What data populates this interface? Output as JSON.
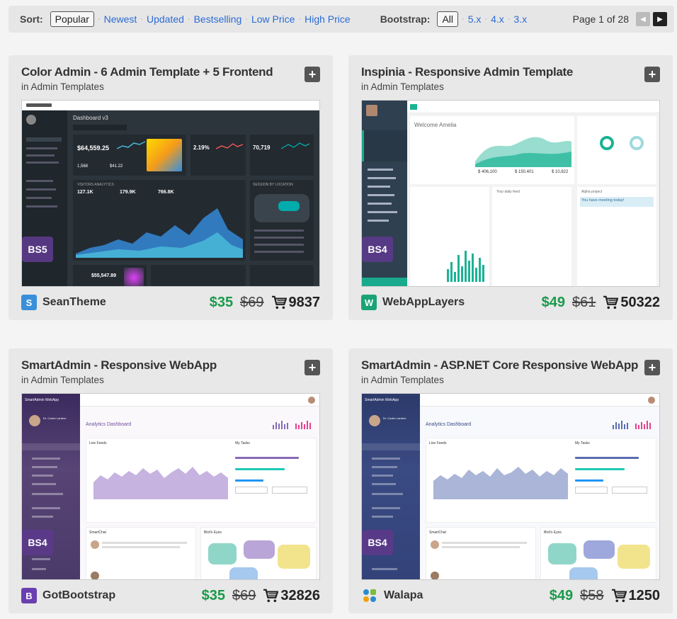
{
  "sortbar": {
    "sort_label": "Sort:",
    "sort_options": [
      "Popular",
      "Newest",
      "Updated",
      "Bestselling",
      "Low Price",
      "High Price"
    ],
    "bootstrap_label": "Bootstrap:",
    "bootstrap_options": [
      "All",
      "5.x",
      "4.x",
      "3.x"
    ],
    "page_text": "Page 1 of 28"
  },
  "cards": [
    {
      "title": "Color Admin - 6 Admin Template + 5 Frontend",
      "category": "in Admin Templates",
      "badge": "BS5",
      "author": "SeanTheme",
      "author_initial": "S",
      "author_color": "#3a8fd9",
      "price": "$35",
      "old_price": "$69",
      "sales": "9837"
    },
    {
      "title": "Inspinia - Responsive Admin Template",
      "category": "in Admin Templates",
      "badge": "BS4",
      "author": "WebAppLayers",
      "author_initial": "W",
      "author_color": "#1aa377",
      "price": "$49",
      "old_price": "$61",
      "sales": "50322"
    },
    {
      "title": "SmartAdmin - Responsive WebApp",
      "category": "in Admin Templates",
      "badge": "BS4",
      "author": "GotBootstrap",
      "author_initial": "B",
      "author_color": "#6a3fb0",
      "price": "$35",
      "old_price": "$69",
      "sales": "32826"
    },
    {
      "title": "SmartAdmin - ASP.NET Core Responsive WebApp",
      "category": "in Admin Templates",
      "badge": "BS4",
      "author": "Walapa",
      "author_initial": "",
      "author_color": "#2a8bd0",
      "price": "$49",
      "old_price": "$58",
      "sales": "1250"
    }
  ],
  "previews": {
    "color_admin": {
      "header_title": "Dashboard v3",
      "total_sales": "$64,559.25",
      "conversion_rate": "2.19%",
      "store_sessions": "70,719",
      "sub_a": "1,568",
      "sub_b": "$41.22",
      "visitors_a": "127.1K",
      "visitors_b": "179.9K",
      "visitors_c": "766.8K",
      "sales_social": "$55,547.89",
      "panel_visitors": "VISITORS ANALYTICS",
      "panel_location": "SESSION BY LOCATION"
    },
    "inspinia": {
      "welcome": "Welcome Amelia",
      "stat_a": "$ 406,100",
      "stat_b": "$ 150,401",
      "stat_c": "$ 10,822",
      "feed_title": "Your daily feed",
      "alpha": "Alpha project",
      "meeting": "You have meeting today!"
    },
    "smartadmin": {
      "brand": "SmartAdmin WebApp",
      "page": "Analytics Dashboard",
      "user": "Dr. Codex Lantern",
      "live": "Live Feeds",
      "tasks": "My Tasks",
      "chat": "SmartChat",
      "birds": "Bird's Eyes"
    }
  }
}
